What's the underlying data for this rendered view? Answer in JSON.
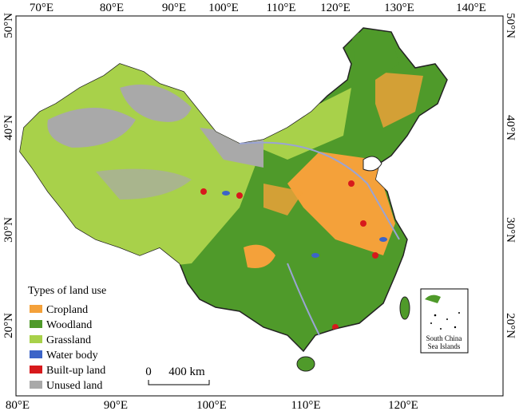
{
  "axes": {
    "top": [
      "70°E",
      "80°E",
      "90°E",
      "100°E",
      "110°E",
      "120°E",
      "130°E",
      "140°E"
    ],
    "bottom": [
      "80°E",
      "90°E",
      "100°E",
      "110°E",
      "120°E"
    ],
    "left": [
      "50°N",
      "40°N",
      "30°N",
      "20°N"
    ],
    "right": [
      "50°N",
      "40°N",
      "30°N",
      "20°N"
    ]
  },
  "legend": {
    "title": "Types of land use",
    "items": [
      {
        "label": "Cropland",
        "color": "#f4a13a"
      },
      {
        "label": "Woodland",
        "color": "#4f9a2a"
      },
      {
        "label": "Grassland",
        "color": "#a8d14a"
      },
      {
        "label": "Water body",
        "color": "#3c64c8"
      },
      {
        "label": "Built-up land",
        "color": "#d7191c"
      },
      {
        "label": "Unused land",
        "color": "#a9a9a9"
      }
    ]
  },
  "scale_bar": {
    "start": "0",
    "end": "400 km"
  },
  "inset": {
    "lines": [
      "South China",
      "Sea Islands"
    ]
  }
}
